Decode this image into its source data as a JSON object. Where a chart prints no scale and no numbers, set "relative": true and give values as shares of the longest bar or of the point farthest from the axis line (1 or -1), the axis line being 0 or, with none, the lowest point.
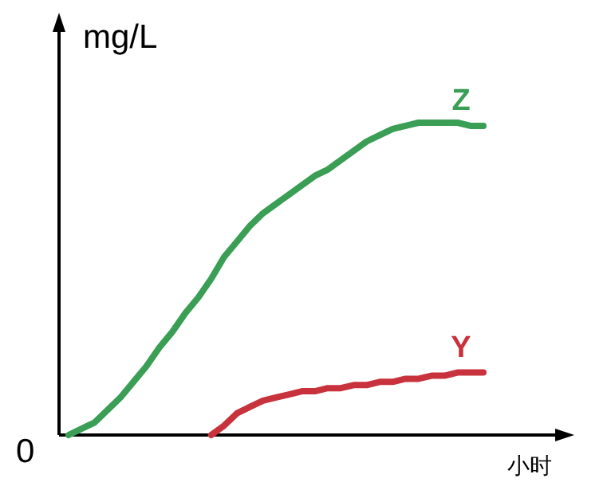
{
  "chart_data": {
    "type": "line",
    "relative": true,
    "ylabel": "mg/L",
    "xlabel": "小时",
    "annotations": [
      "0"
    ],
    "marker": "none",
    "line_style": "solid",
    "categories": [
      null,
      null,
      null,
      null,
      null,
      null,
      null,
      null,
      null,
      null,
      null,
      null,
      null,
      null,
      null,
      null,
      null,
      null,
      null,
      null,
      null,
      null,
      null,
      null,
      null,
      null,
      null,
      null,
      null,
      null,
      null,
      null,
      null
    ],
    "series": [
      {
        "name": "Z",
        "color": "#3a9e55",
        "values": [
          0,
          0.02,
          0.04,
          0.08,
          0.12,
          0.17,
          0.22,
          0.28,
          0.33,
          0.39,
          0.44,
          0.5,
          0.57,
          0.62,
          0.67,
          0.71,
          0.74,
          0.77,
          0.8,
          0.83,
          0.85,
          0.88,
          0.91,
          0.94,
          0.96,
          0.98,
          0.99,
          1,
          1,
          1,
          1,
          0.99,
          0.99
        ]
      },
      {
        "name": "Y",
        "color": "#c8323c",
        "values": [
          null,
          null,
          null,
          null,
          null,
          null,
          null,
          null,
          null,
          null,
          null,
          0,
          0.03,
          0.07,
          0.09,
          0.11,
          0.12,
          0.13,
          0.14,
          0.14,
          0.15,
          0.15,
          0.16,
          0.16,
          0.17,
          0.17,
          0.18,
          0.18,
          0.19,
          0.19,
          0.2,
          0.2,
          0.2
        ]
      }
    ]
  }
}
